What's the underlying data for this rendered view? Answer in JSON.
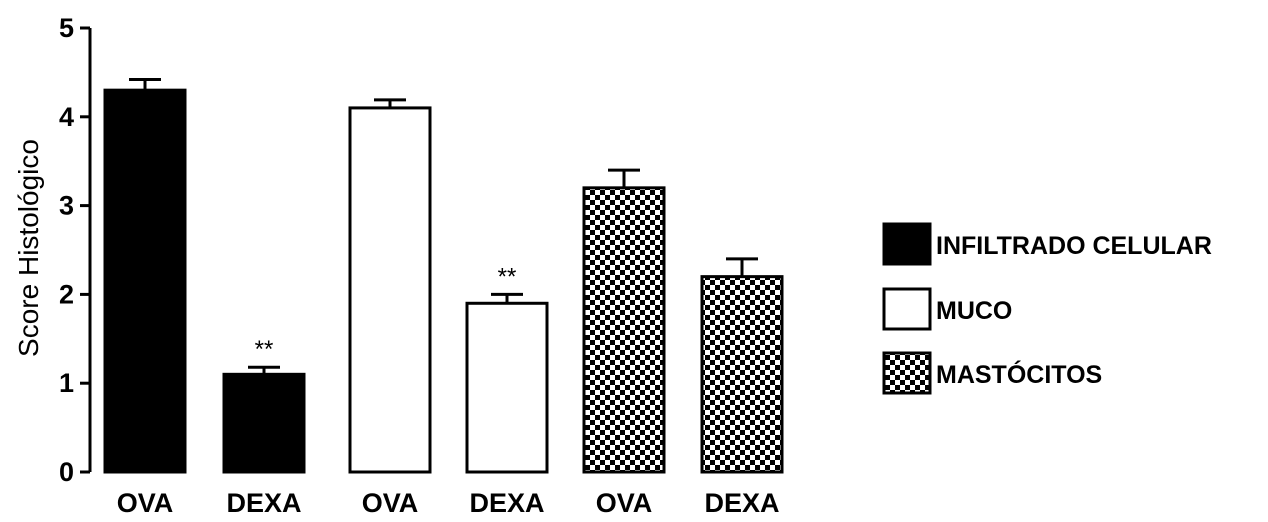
{
  "chart_data": {
    "type": "bar",
    "ylabel": "Score Histológico",
    "ylim": [
      0,
      5
    ],
    "yticks": [
      0,
      1,
      2,
      3,
      4,
      5
    ],
    "grid": false,
    "legend_position": "right",
    "categories": [
      "OVA",
      "DEXA",
      "OVA",
      "DEXA",
      "OVA",
      "DEXA"
    ],
    "values": [
      4.3,
      1.1,
      4.1,
      1.9,
      3.2,
      2.2
    ],
    "errors": [
      0.12,
      0.08,
      0.09,
      0.1,
      0.2,
      0.2
    ],
    "annotations": [
      "",
      "**",
      "",
      "**",
      "",
      ""
    ],
    "bar_series": [
      0,
      0,
      1,
      1,
      2,
      2
    ],
    "series": [
      {
        "name": "INFILTRADO CELULAR",
        "fill": "solid",
        "color": "#000000"
      },
      {
        "name": "MUCO",
        "fill": "white",
        "color": "#ffffff"
      },
      {
        "name": "MASTÓCITOS",
        "fill": "checkered",
        "color": "#000000"
      }
    ]
  }
}
